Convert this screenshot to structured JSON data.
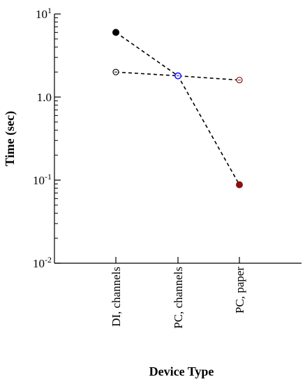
{
  "chart_data": {
    "type": "scatter",
    "xlabel": "Device Type",
    "ylabel": "Time (sec)",
    "categories": [
      "DI, channels",
      "PC, channels",
      "PC, paper"
    ],
    "y_scale": "log",
    "ylim": [
      0.01,
      10
    ],
    "y_ticks": [
      {
        "value": 10,
        "base": "10",
        "exp": "1"
      },
      {
        "value": 1,
        "label": "1.0"
      },
      {
        "value": 0.1,
        "base": "10",
        "exp": "-1"
      },
      {
        "value": 0.01,
        "base": "10",
        "exp": "-2"
      }
    ],
    "grid": false,
    "series": [
      {
        "marker": "filled",
        "line_style": "dashed",
        "values": [
          6.0,
          1.8,
          0.088
        ],
        "colors": [
          "#000000",
          "#1a1aff",
          "#8b1010"
        ]
      },
      {
        "marker": "hollow",
        "line_style": "dashed",
        "values": [
          2.0,
          1.8,
          1.6
        ],
        "colors": [
          "#000000",
          "#1a1aff",
          "#8b1010"
        ]
      }
    ]
  }
}
